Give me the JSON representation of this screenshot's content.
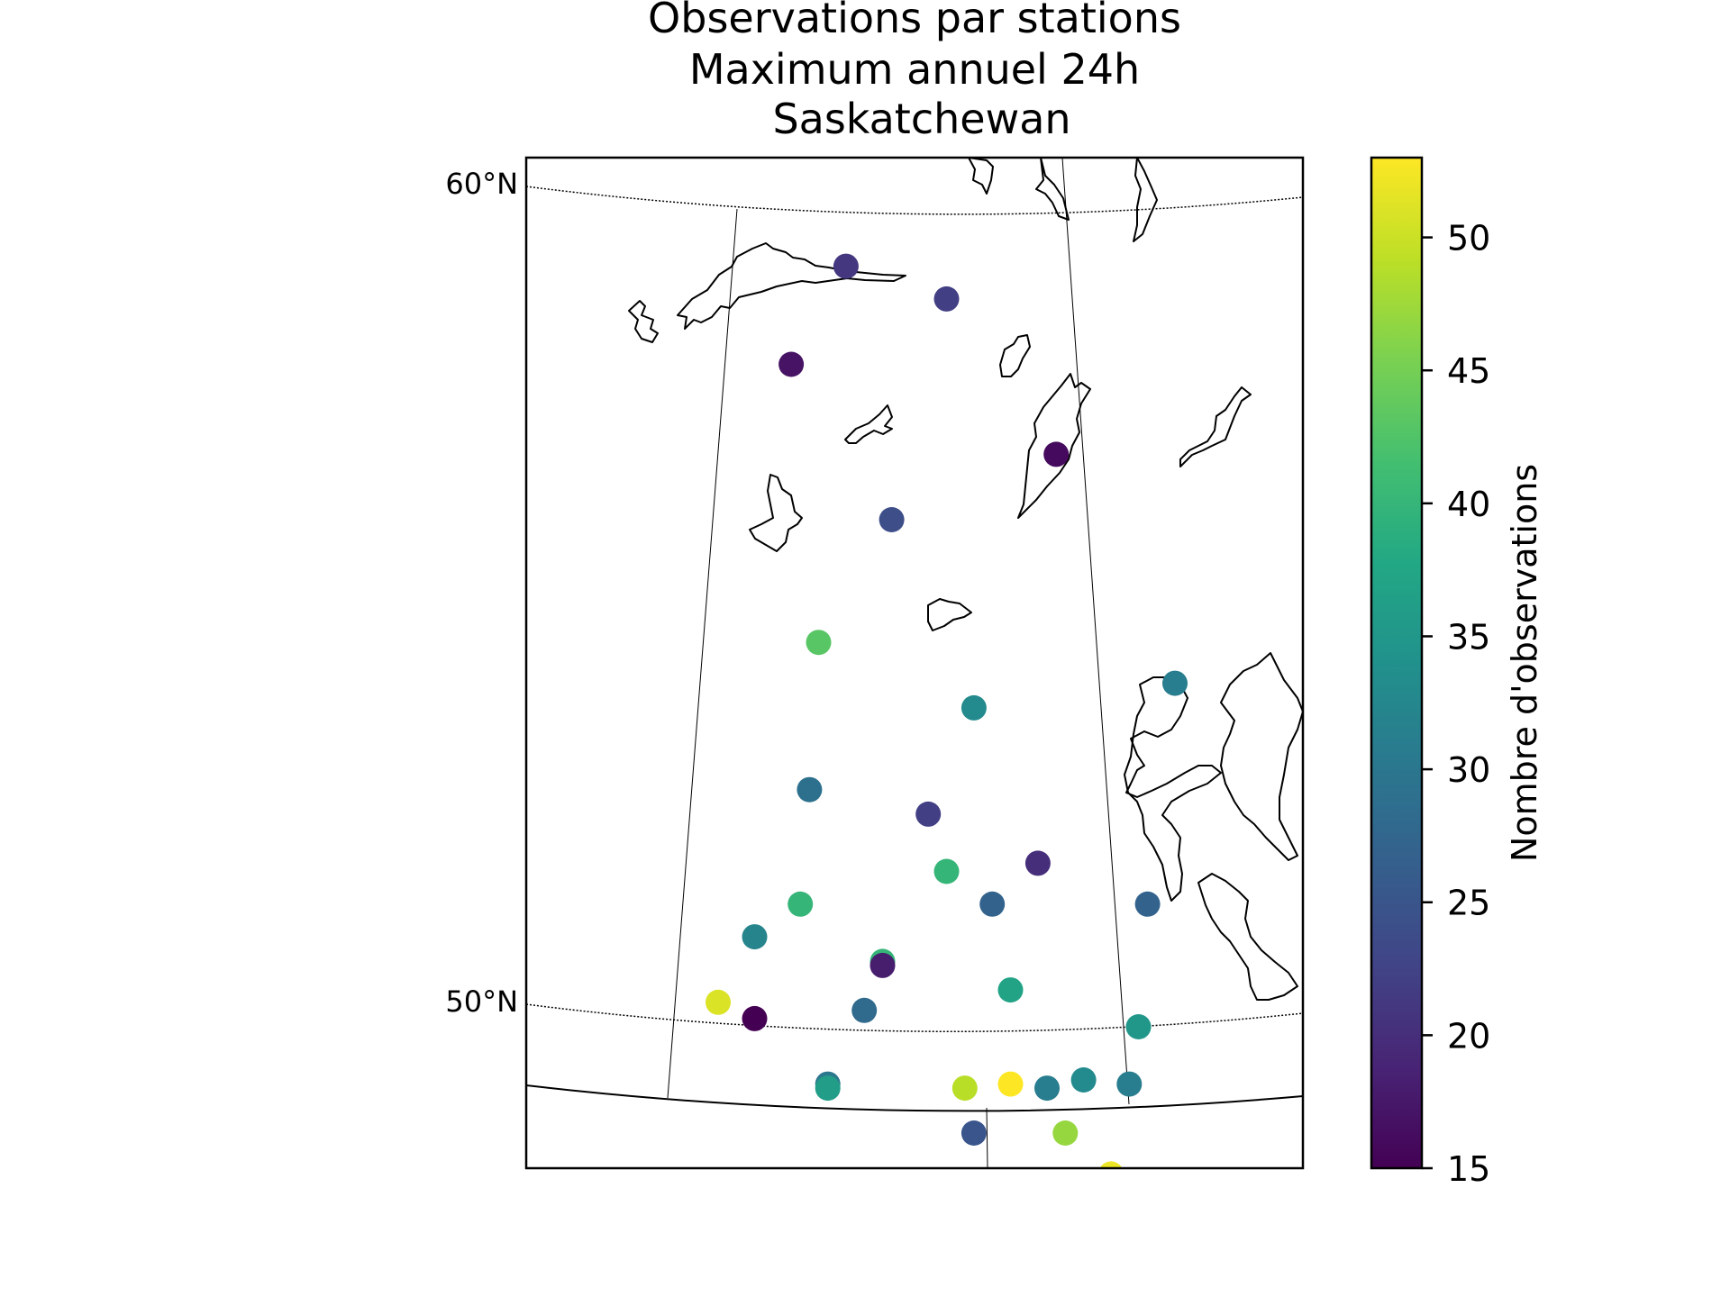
{
  "chart_data": {
    "type": "scatter",
    "title_lines": [
      "Observations par stations",
      "Maximum annuel 24h",
      "Saskatchewan"
    ],
    "lat_labels": [
      {
        "lat": 60,
        "text": "60°N"
      },
      {
        "lat": 50,
        "text": "50°N"
      }
    ],
    "colorbar": {
      "label": "Nombre d'observations",
      "min": 15,
      "max": 53,
      "ticks": [
        15,
        20,
        25,
        30,
        35,
        40,
        45,
        50
      ],
      "colormap": "viridis"
    },
    "x_range_lon": [
      -110,
      -101.5
    ],
    "stations": [
      {
        "lon": -106.5,
        "lat": 59.3,
        "value": 21
      },
      {
        "lon": -105.4,
        "lat": 58.9,
        "value": 22
      },
      {
        "lon": -107.1,
        "lat": 58.1,
        "value": 17
      },
      {
        "lon": -104.2,
        "lat": 57.0,
        "value": 16
      },
      {
        "lon": -106.0,
        "lat": 56.2,
        "value": 24
      },
      {
        "lon": -106.8,
        "lat": 54.7,
        "value": 43
      },
      {
        "lon": -102.9,
        "lat": 54.2,
        "value": 31
      },
      {
        "lon": -105.1,
        "lat": 53.9,
        "value": 33
      },
      {
        "lon": -106.9,
        "lat": 52.9,
        "value": 29
      },
      {
        "lon": -105.6,
        "lat": 52.6,
        "value": 22
      },
      {
        "lon": -104.4,
        "lat": 52.0,
        "value": 20
      },
      {
        "lon": -105.4,
        "lat": 51.9,
        "value": 40
      },
      {
        "lon": -107.0,
        "lat": 51.5,
        "value": 40
      },
      {
        "lon": -104.9,
        "lat": 51.5,
        "value": 27
      },
      {
        "lon": -103.2,
        "lat": 51.5,
        "value": 27
      },
      {
        "lon": -107.5,
        "lat": 51.1,
        "value": 32
      },
      {
        "lon": -106.1,
        "lat": 50.8,
        "value": 40
      },
      {
        "lon": -106.1,
        "lat": 50.75,
        "value": 18
      },
      {
        "lon": -107.9,
        "lat": 50.3,
        "value": 51
      },
      {
        "lon": -104.7,
        "lat": 50.45,
        "value": 37
      },
      {
        "lon": -107.5,
        "lat": 50.1,
        "value": 15
      },
      {
        "lon": -106.3,
        "lat": 50.2,
        "value": 28
      },
      {
        "lon": -103.3,
        "lat": 50.0,
        "value": 35
      },
      {
        "lon": -106.7,
        "lat": 49.3,
        "value": 30
      },
      {
        "lon": -106.7,
        "lat": 49.25,
        "value": 36
      },
      {
        "lon": -105.2,
        "lat": 49.25,
        "value": 49
      },
      {
        "lon": -104.7,
        "lat": 49.3,
        "value": 53
      },
      {
        "lon": -104.3,
        "lat": 49.25,
        "value": 31
      },
      {
        "lon": -103.9,
        "lat": 49.35,
        "value": 33
      },
      {
        "lon": -103.4,
        "lat": 49.3,
        "value": 31
      },
      {
        "lon": -105.1,
        "lat": 48.7,
        "value": 25
      },
      {
        "lon": -104.1,
        "lat": 48.7,
        "value": 47
      },
      {
        "lon": -103.6,
        "lat": 48.2,
        "value": 52
      }
    ]
  }
}
